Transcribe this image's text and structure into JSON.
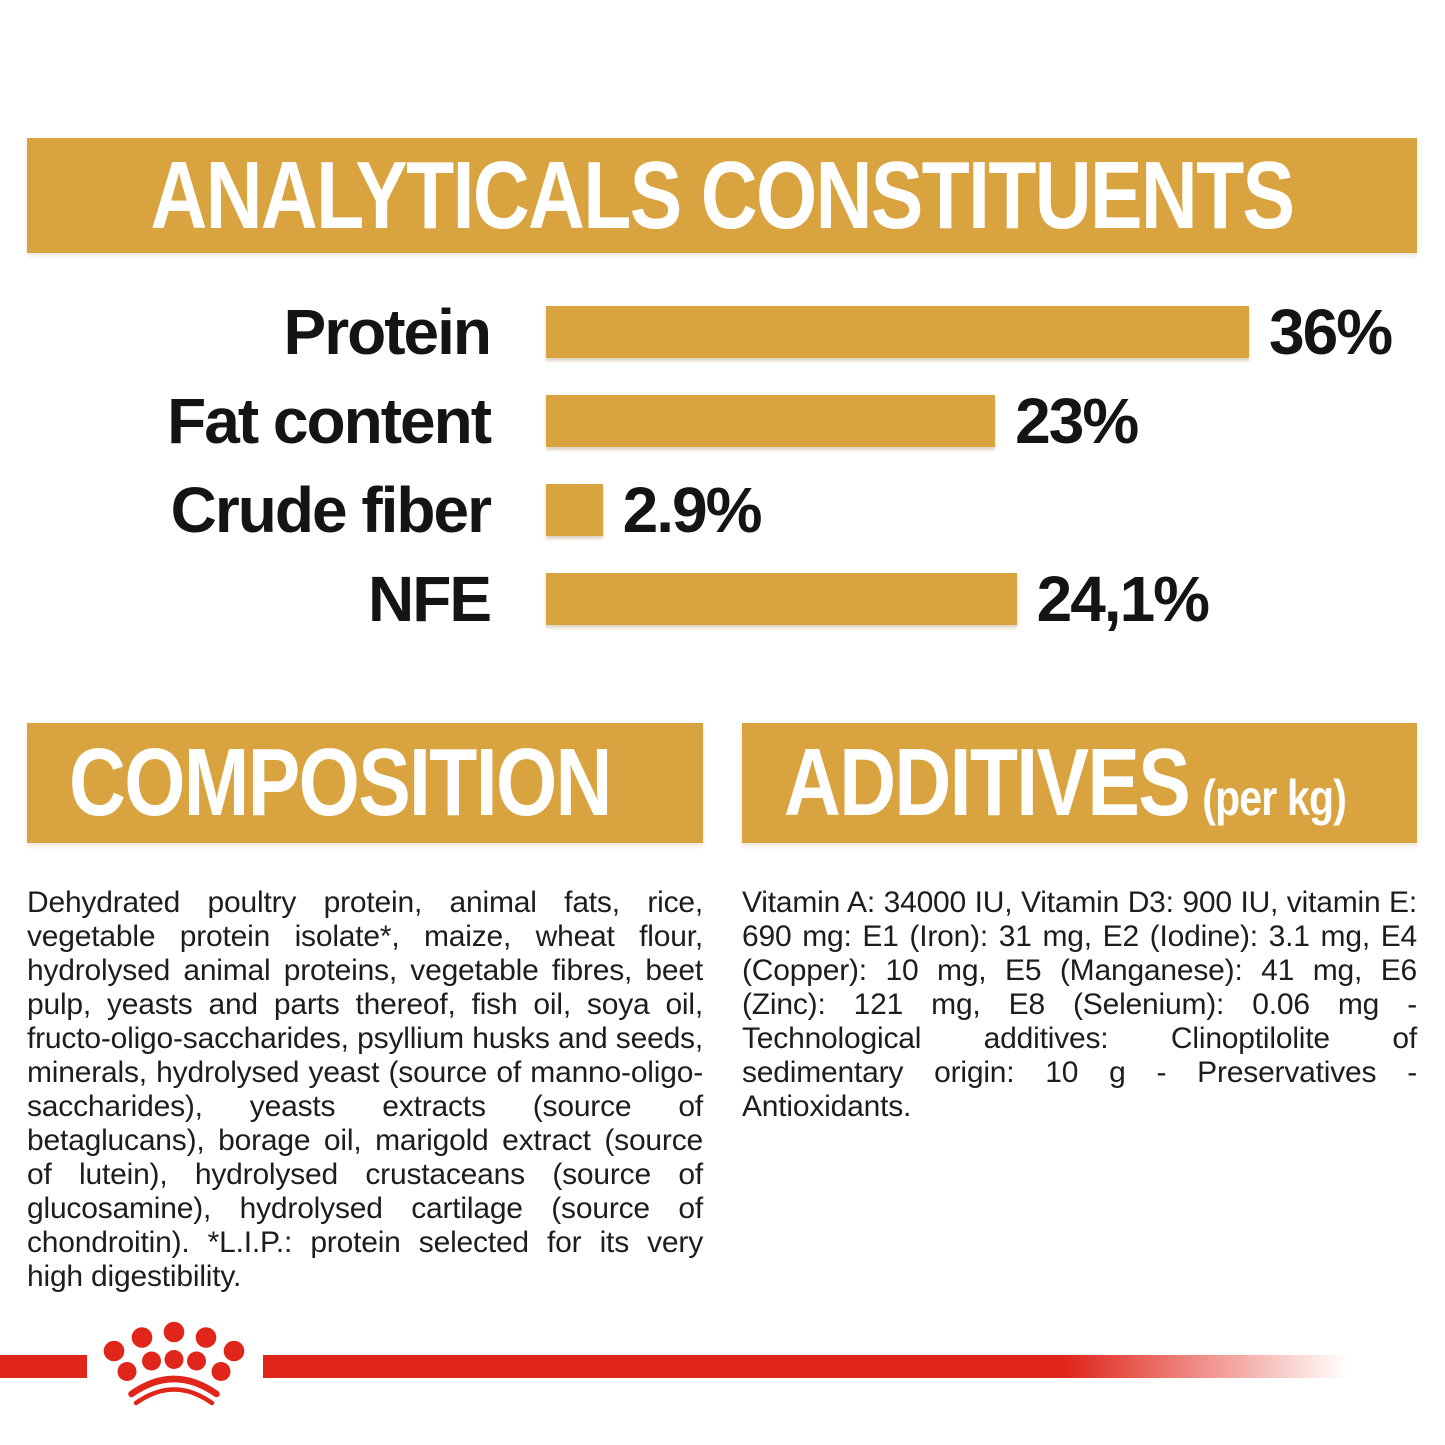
{
  "analyticals": {
    "title": "ANALYTICALS CONSTITUENTS"
  },
  "chart_data": {
    "type": "bar",
    "orientation": "horizontal",
    "title": "ANALYTICALS CONSTITUENTS",
    "categories": [
      "Protein",
      "Fat content",
      "Crude fiber",
      "NFE"
    ],
    "values": [
      36,
      23,
      2.9,
      24.1
    ],
    "value_labels": [
      "36%",
      "23%",
      "2.9%",
      "24,1%"
    ],
    "xlim": [
      0,
      36
    ],
    "bar_color": "#D9A440",
    "grid": false,
    "legend": false
  },
  "composition": {
    "title": "COMPOSITION",
    "body": "Dehydrated poultry protein, animal fats, rice, vegetable protein isolate*, maize, wheat flour, hydrolysed animal proteins, vegetable fibres, beet pulp, yeasts and parts thereof, fish oil, soya oil, fructo-oligo-saccharides, psyllium husks and seeds, minerals, hydrolysed yeast (source of manno-oligo-saccharides), yeasts extracts (source of betaglucans), borage oil, marigold extract (source of lutein), hydrolysed crustaceans (source of glucosamine), hydrolysed cartilage (source of chondroitin). *L.I.P.: protein selected for its very high digestibility."
  },
  "additives": {
    "title": "ADDITIVES",
    "suffix": "(per kg)",
    "body": "Vitamin A: 34000 IU, Vitamin D3: 900 IU, vitamin E: 690 mg: E1 (Iron): 31 mg, E2 (Iodine): 3.1 mg, E4 (Copper): 10 mg, E5 (Manganese): 41 mg, E6 (Zinc): 121 mg, E8 (Selenium): 0.06 mg - Technological additives: Clinoptilolite of sedimentary origin: 10 g - Preservatives - Antioxidants."
  },
  "footer": {
    "brand_icon": "royal-canin-crown"
  },
  "colors": {
    "gold": "#D9A440",
    "red": "#E0261B",
    "text": "#1D1D1B"
  }
}
